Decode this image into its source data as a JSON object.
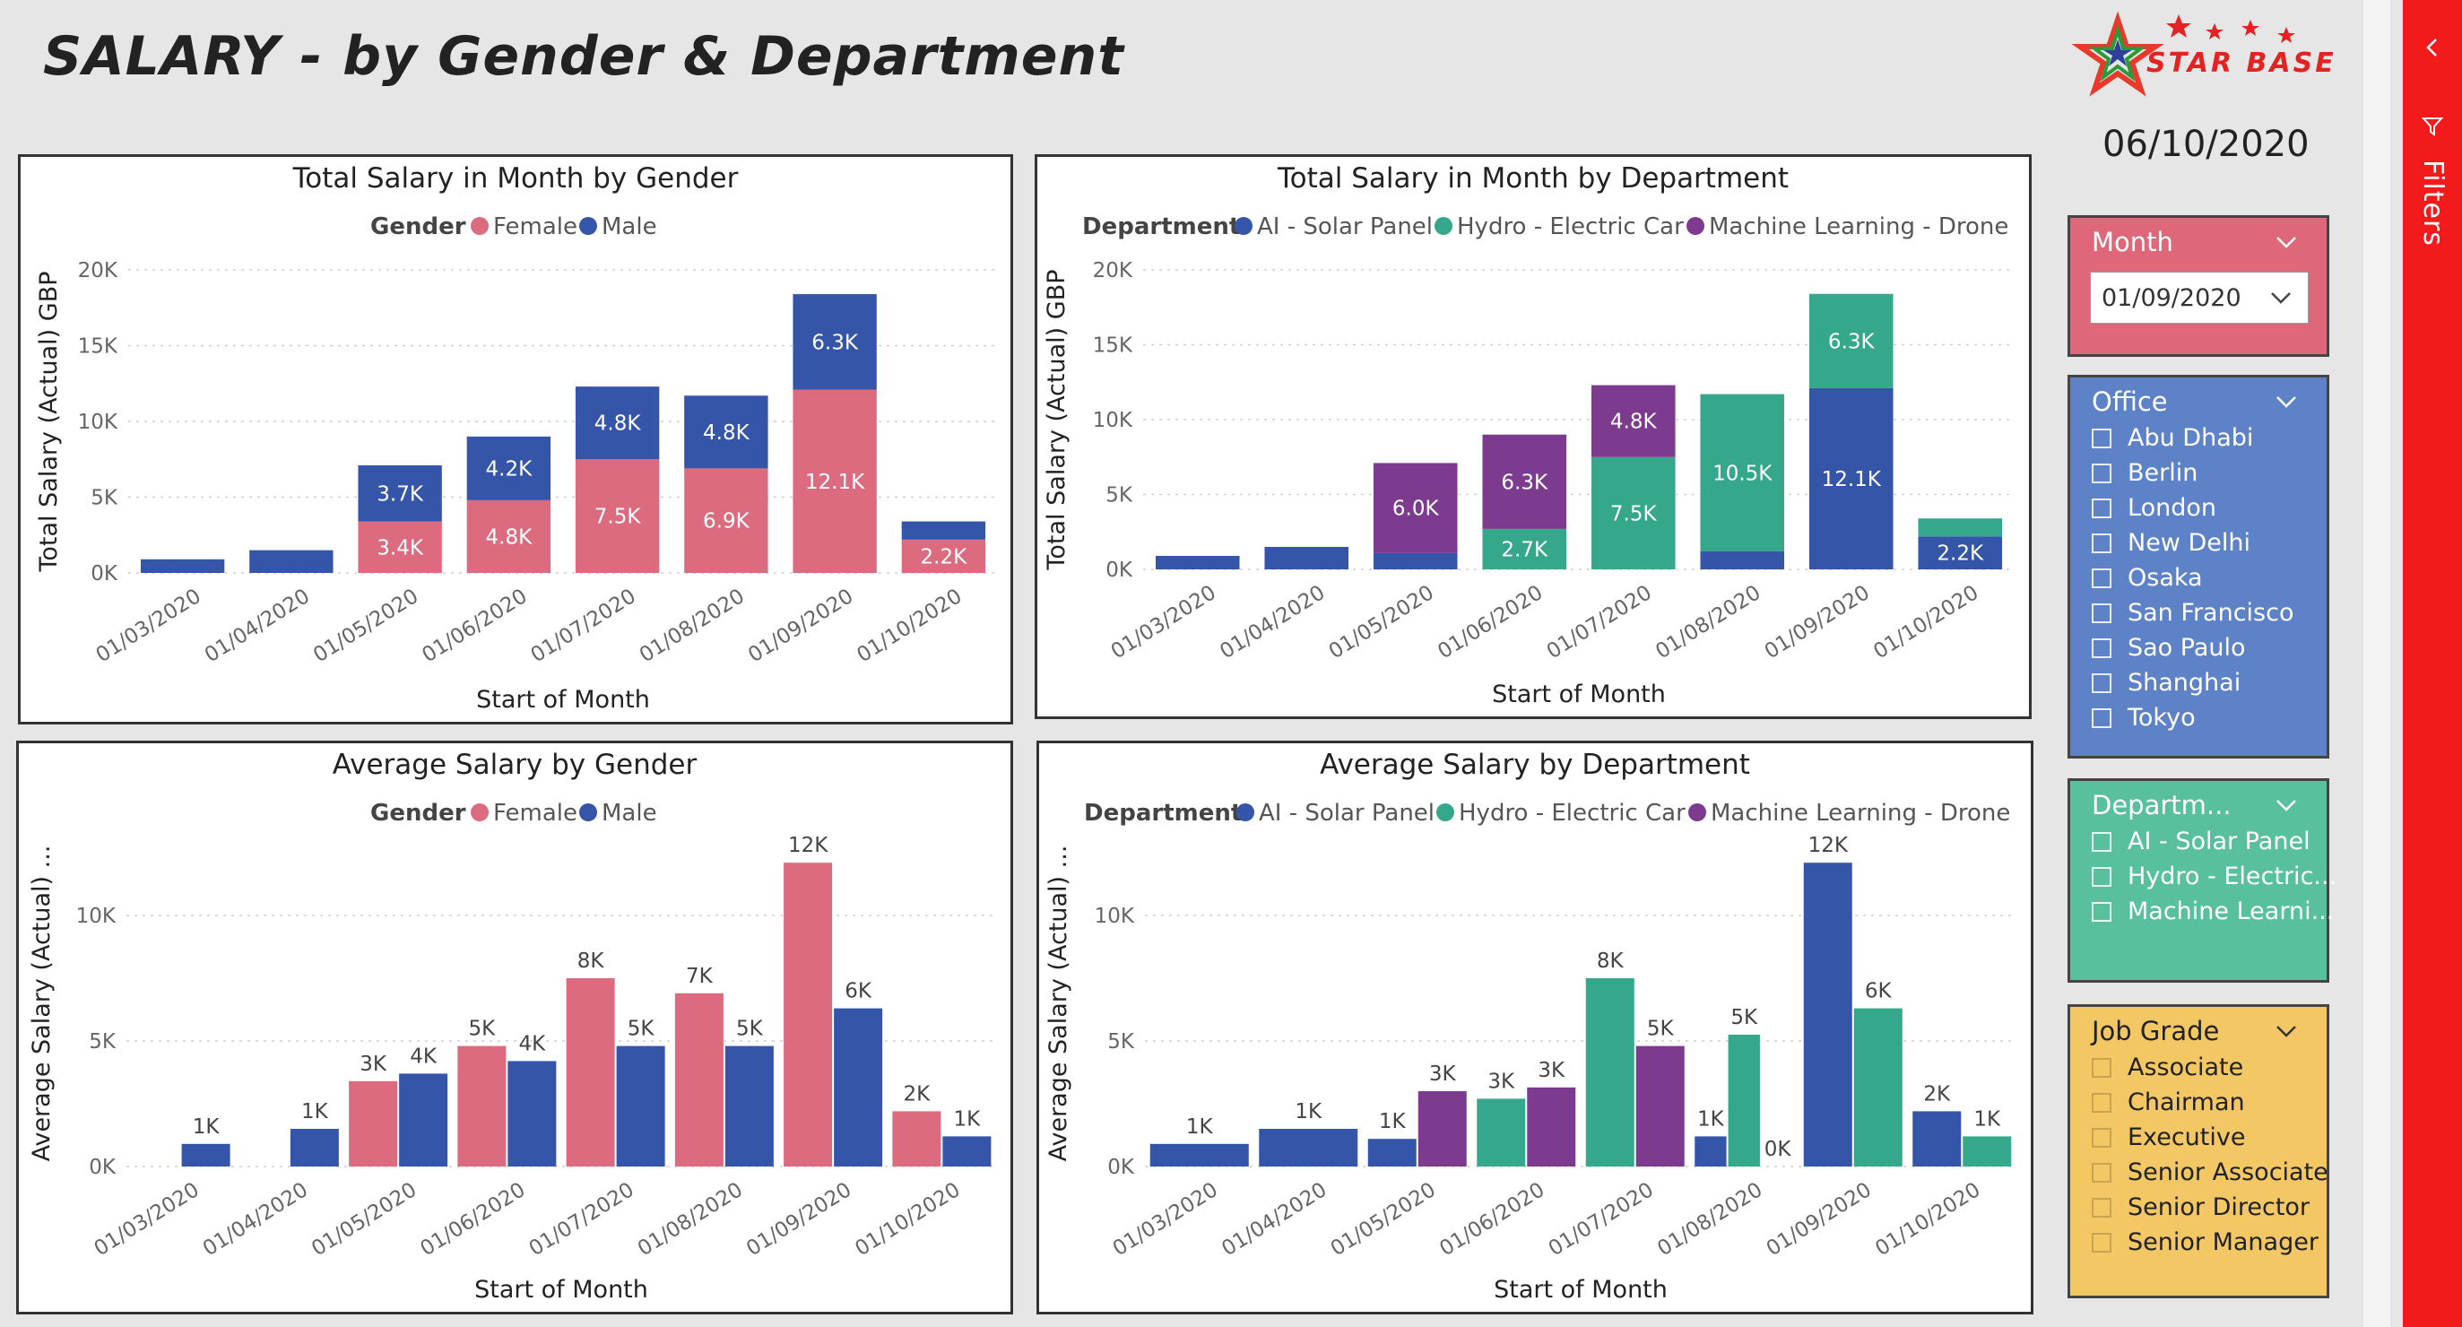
{
  "page": {
    "title": "SALARY - by Gender & Department",
    "date": "06/10/2020",
    "logo_text": "STAR BASE",
    "filters_label": "Filters"
  },
  "colors": {
    "female": "#dd6b7f",
    "male": "#3555a8",
    "ai": "#3555a8",
    "hydro": "#35a88c",
    "ml": "#7d3b8f"
  },
  "charts": {
    "total_gender": {
      "title": "Total Salary in Month by Gender",
      "legend_title": "Gender",
      "series_labels": [
        "Female",
        "Male"
      ],
      "xlabel": "Start of Month",
      "ylabel": "Total Salary (Actual) GBP",
      "yticks": [
        "20K",
        "15K",
        "10K",
        "5K",
        "0K"
      ],
      "data_labels": [
        {
          "female": "",
          "male": ""
        },
        {
          "female": "",
          "male": ""
        },
        {
          "female": "3.4K",
          "male": "3.7K"
        },
        {
          "female": "4.8K",
          "male": "4.2K"
        },
        {
          "female": "7.5K",
          "male": "4.8K"
        },
        {
          "female": "6.9K",
          "male": "4.8K"
        },
        {
          "female": "12.1K",
          "male": "6.3K"
        },
        {
          "female": "2.2K",
          "male": ""
        }
      ]
    },
    "total_dept": {
      "title": "Total Salary in Month by Department",
      "legend_title": "Department",
      "series_labels": [
        "AI - Solar Panel",
        "Hydro - Electric Car",
        "Machine Learning - Drone"
      ],
      "xlabel": "Start of Month",
      "ylabel": "Total Salary (Actual) GBP",
      "yticks": [
        "20K",
        "15K",
        "10K",
        "5K",
        "0K"
      ],
      "data_labels": [
        {
          "ai": "",
          "hydro": "",
          "ml": ""
        },
        {
          "ai": "",
          "hydro": "",
          "ml": ""
        },
        {
          "ai": "",
          "hydro": "",
          "ml": "6.0K"
        },
        {
          "ai": "",
          "hydro": "2.7K",
          "ml": "6.3K"
        },
        {
          "ai": "",
          "hydro": "7.5K",
          "ml": "4.8K"
        },
        {
          "ai": "",
          "hydro": "10.5K",
          "ml": ""
        },
        {
          "ai": "12.1K",
          "hydro": "6.3K",
          "ml": ""
        },
        {
          "ai": "2.2K",
          "hydro": "",
          "ml": ""
        }
      ]
    },
    "avg_gender": {
      "title": "Average Salary by Gender",
      "legend_title": "Gender",
      "series_labels": [
        "Female",
        "Male"
      ],
      "xlabel": "Start of Month",
      "ylabel": "Average Salary (Actual) ...",
      "yticks": [
        "10K",
        "5K",
        "0K"
      ],
      "data_labels": [
        {
          "female": "",
          "male": "1K"
        },
        {
          "female": "",
          "male": "1K"
        },
        {
          "female": "3K",
          "male": "4K"
        },
        {
          "female": "5K",
          "male": "4K"
        },
        {
          "female": "8K",
          "male": "5K"
        },
        {
          "female": "7K",
          "male": "5K"
        },
        {
          "female": "12K",
          "male": "6K"
        },
        {
          "female": "2K",
          "male": "1K"
        }
      ]
    },
    "avg_dept": {
      "title": "Average Salary by Department",
      "legend_title": "Department",
      "series_labels": [
        "AI - Solar Panel",
        "Hydro - Electric Car",
        "Machine Learning - Drone"
      ],
      "xlabel": "Start of Month",
      "ylabel": "Average Salary (Actual) ...",
      "yticks": [
        "10K",
        "5K",
        "0K"
      ],
      "data_labels": [
        {
          "ai": "1K",
          "hydro": "",
          "ml": ""
        },
        {
          "ai": "1K",
          "hydro": "",
          "ml": ""
        },
        {
          "ai": "1K",
          "hydro": "",
          "ml": "3K"
        },
        {
          "ai": "",
          "hydro": "3K",
          "ml": "3K"
        },
        {
          "ai": "",
          "hydro": "8K",
          "ml": "5K"
        },
        {
          "ai": "1K",
          "hydro": "5K",
          "ml": "0K"
        },
        {
          "ai": "12K",
          "hydro": "6K",
          "ml": ""
        },
        {
          "ai": "2K",
          "hydro": "1K",
          "ml": ""
        }
      ]
    }
  },
  "chart_data": [
    {
      "type": "bar",
      "stacked": true,
      "title": "Total Salary in Month by Gender",
      "categories": [
        "01/03/2020",
        "01/04/2020",
        "01/05/2020",
        "01/06/2020",
        "01/07/2020",
        "01/08/2020",
        "01/09/2020",
        "01/10/2020"
      ],
      "series": [
        {
          "name": "Female",
          "values": [
            0,
            0,
            3400,
            4800,
            7500,
            6900,
            12100,
            2200
          ]
        },
        {
          "name": "Male",
          "values": [
            900,
            1500,
            3700,
            4200,
            4800,
            4800,
            6300,
            1200
          ]
        }
      ],
      "xlabel": "Start of Month",
      "ylabel": "Total Salary (Actual) GBP",
      "ylim": [
        0,
        20000
      ],
      "grid": true,
      "legend": "top-center"
    },
    {
      "type": "bar",
      "stacked": true,
      "title": "Total Salary in Month by Department",
      "categories": [
        "01/03/2020",
        "01/04/2020",
        "01/05/2020",
        "01/06/2020",
        "01/07/2020",
        "01/08/2020",
        "01/09/2020",
        "01/10/2020"
      ],
      "series": [
        {
          "name": "AI - Solar Panel",
          "values": [
            900,
            1500,
            1100,
            0,
            0,
            1200,
            12100,
            2200
          ]
        },
        {
          "name": "Hydro - Electric Car",
          "values": [
            0,
            0,
            0,
            2700,
            7500,
            10500,
            6300,
            1200
          ]
        },
        {
          "name": "Machine Learning - Drone",
          "values": [
            0,
            0,
            6000,
            6300,
            4800,
            0,
            0,
            0
          ]
        }
      ],
      "xlabel": "Start of Month",
      "ylabel": "Total Salary (Actual) GBP",
      "ylim": [
        0,
        20000
      ],
      "grid": true,
      "legend": "top-center"
    },
    {
      "type": "bar",
      "title": "Average Salary by Gender",
      "categories": [
        "01/03/2020",
        "01/04/2020",
        "01/05/2020",
        "01/06/2020",
        "01/07/2020",
        "01/08/2020",
        "01/09/2020",
        "01/10/2020"
      ],
      "series": [
        {
          "name": "Female",
          "values": [
            0,
            0,
            3400,
            4800,
            7500,
            6900,
            12100,
            2200
          ]
        },
        {
          "name": "Male",
          "values": [
            900,
            1500,
            3700,
            4200,
            4800,
            4800,
            6300,
            1200
          ]
        }
      ],
      "xlabel": "Start of Month",
      "ylabel": "Average Salary (Actual) ...",
      "ylim": [
        0,
        13000
      ],
      "grid": true,
      "legend": "top-center"
    },
    {
      "type": "bar",
      "title": "Average Salary by Department",
      "categories": [
        "01/03/2020",
        "01/04/2020",
        "01/05/2020",
        "01/06/2020",
        "01/07/2020",
        "01/08/2020",
        "01/09/2020",
        "01/10/2020"
      ],
      "series": [
        {
          "name": "AI - Solar Panel",
          "values": [
            900,
            1500,
            1100,
            0,
            0,
            1200,
            12100,
            2200
          ]
        },
        {
          "name": "Hydro - Electric Car",
          "values": [
            0,
            0,
            0,
            2700,
            7500,
            5250,
            6300,
            1200
          ]
        },
        {
          "name": "Machine Learning - Drone",
          "values": [
            0,
            0,
            3000,
            3150,
            4800,
            0,
            0,
            0
          ]
        }
      ],
      "xlabel": "Start of Month",
      "ylabel": "Average Salary (Actual) ...",
      "ylim": [
        0,
        13000
      ],
      "grid": true,
      "legend": "top-center"
    }
  ],
  "slicers": {
    "month": {
      "label": "Month",
      "value": "01/09/2020"
    },
    "office": {
      "label": "Office",
      "items": [
        "Abu Dhabi",
        "Berlin",
        "London",
        "New Delhi",
        "Osaka",
        "San Francisco",
        "Sao Paulo",
        "Shanghai",
        "Tokyo"
      ]
    },
    "department": {
      "label": "Departm...",
      "items": [
        "AI - Solar Panel",
        "Hydro - Electric...",
        "Machine Learni..."
      ]
    },
    "job_grade": {
      "label": "Job Grade",
      "items": [
        "Associate",
        "Chairman",
        "Executive",
        "Senior Associate",
        "Senior Director",
        "Senior Manager"
      ]
    }
  }
}
